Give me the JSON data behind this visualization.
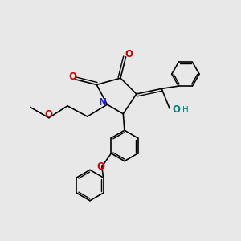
{
  "background_color": "#e8e8e8",
  "bond_color": "#000000",
  "N_color": "#2222cc",
  "O_color": "#cc0000",
  "OH_color": "#008080",
  "lw": 1.2,
  "figsize": [
    3.0,
    3.0
  ],
  "dpi": 100,
  "xlim": [
    0,
    10
  ],
  "ylim": [
    0,
    10
  ]
}
